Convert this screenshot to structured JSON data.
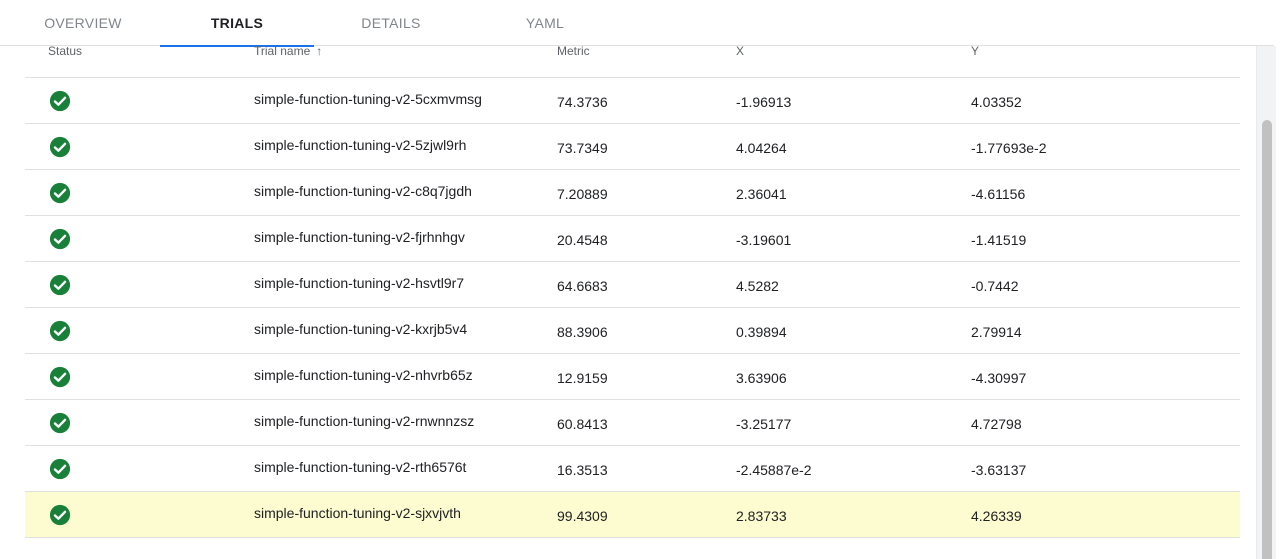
{
  "tabs": [
    {
      "label": "OVERVIEW",
      "active": false
    },
    {
      "label": "TRIALS",
      "active": true
    },
    {
      "label": "DETAILS",
      "active": false
    },
    {
      "label": "YAML",
      "active": false
    }
  ],
  "table": {
    "columns": {
      "status": "Status",
      "name": "Trial name",
      "name_sort": "↑",
      "metric": "Metric",
      "x": "X",
      "y": "Y"
    },
    "rows": [
      {
        "status": "success",
        "name": "simple-function-tuning-v2-5cxmvmsg",
        "metric": "74.3736",
        "x": "-1.96913",
        "y": "4.03352"
      },
      {
        "status": "success",
        "name": "simple-function-tuning-v2-5zjwl9rh",
        "metric": "73.7349",
        "x": "4.04264",
        "y": "-1.77693e-2"
      },
      {
        "status": "success",
        "name": "simple-function-tuning-v2-c8q7jgdh",
        "metric": "7.20889",
        "x": "2.36041",
        "y": "-4.61156"
      },
      {
        "status": "success",
        "name": "simple-function-tuning-v2-fjrhnhgv",
        "metric": "20.4548",
        "x": "-3.19601",
        "y": "-1.41519"
      },
      {
        "status": "success",
        "name": "simple-function-tuning-v2-hsvtl9r7",
        "metric": "64.6683",
        "x": "4.5282",
        "y": "-0.7442"
      },
      {
        "status": "success",
        "name": "simple-function-tuning-v2-kxrjb5v4",
        "metric": "88.3906",
        "x": "0.39894",
        "y": "2.79914"
      },
      {
        "status": "success",
        "name": "simple-function-tuning-v2-nhvrb65z",
        "metric": "12.9159",
        "x": "3.63906",
        "y": "-4.30997"
      },
      {
        "status": "success",
        "name": "simple-function-tuning-v2-rnwnnzsz",
        "metric": "60.8413",
        "x": "-3.25177",
        "y": "4.72798"
      },
      {
        "status": "success",
        "name": "simple-function-tuning-v2-rth6576t",
        "metric": "16.3513",
        "x": "-2.45887e-2",
        "y": "-3.63137"
      },
      {
        "status": "success",
        "name": "simple-function-tuning-v2-sjxvjvth",
        "metric": "99.4309",
        "x": "2.83733",
        "y": "4.26339",
        "highlighted": true
      }
    ]
  },
  "icons": {
    "status_success": "check-circle-icon"
  },
  "colors": {
    "success": "#188038",
    "tab_underline": "#1a73e8",
    "highlight_row": "#fdfcd0"
  }
}
